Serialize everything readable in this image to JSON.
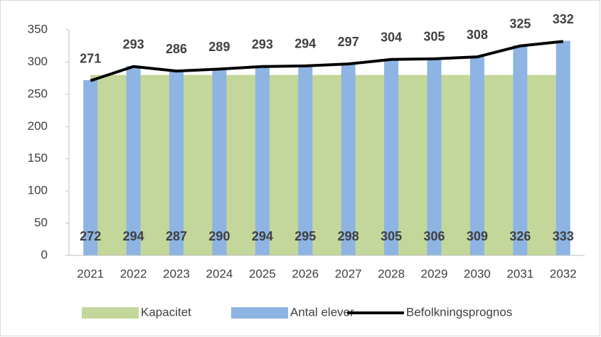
{
  "chart_data": {
    "type": "combo",
    "categories": [
      "2021",
      "2022",
      "2023",
      "2024",
      "2025",
      "2026",
      "2027",
      "2028",
      "2029",
      "2030",
      "2031",
      "2032"
    ],
    "series": [
      {
        "name": "Kapacitet",
        "type": "area",
        "color": "#c4d79b",
        "values": [
          280,
          280,
          280,
          280,
          280,
          280,
          280,
          280,
          280,
          280,
          280,
          280
        ]
      },
      {
        "name": "Antal elever",
        "type": "bar",
        "color": "#8db4e2",
        "values": [
          272,
          294,
          287,
          290,
          294,
          295,
          298,
          305,
          306,
          309,
          326,
          333
        ]
      },
      {
        "name": "Befolkningsprognos",
        "type": "line",
        "color": "#000000",
        "values": [
          271,
          293,
          286,
          289,
          293,
          294,
          297,
          304,
          305,
          308,
          325,
          332
        ]
      }
    ],
    "ylim": [
      0,
      350
    ],
    "yticks": [
      0,
      50,
      100,
      150,
      200,
      250,
      300,
      350
    ],
    "grid": false,
    "legend": "bottom"
  }
}
